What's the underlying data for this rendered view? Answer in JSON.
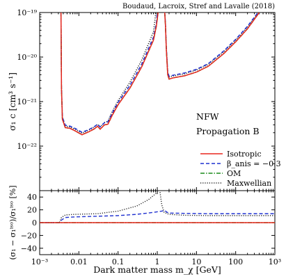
{
  "credit": "Boudaud, Lacroix, Stref and Lavalle (2018)",
  "annotations": [
    "NFW",
    "Propagation B"
  ],
  "colors": {
    "isotropic": "#e8261e",
    "beta": "#1f30d0",
    "om": "#1a8a1a",
    "maxwellian": "#222222"
  },
  "chart_data": [
    {
      "type": "line",
      "panel": "top",
      "xscale": "log",
      "yscale": "log",
      "xlim": [
        0.001,
        1000
      ],
      "ylim": [
        1e-23,
        1e-19
      ],
      "ylabel": "σ₁ c [cm³ s⁻¹]",
      "ytick_labels": [
        "10⁻¹⁹",
        "10⁻²⁰",
        "10⁻²¹",
        "10⁻²²"
      ],
      "ytick_values": [
        1e-19,
        1e-20,
        1e-21,
        1e-22
      ],
      "legend_position": "lower-right",
      "series": [
        {
          "name": "Isotropic",
          "style": "solid",
          "points": [
            [
              0.0035,
              1e-19
            ],
            [
              0.0036,
              2e-21
            ],
            [
              0.0038,
              4e-22
            ],
            [
              0.0045,
              2.6e-22
            ],
            [
              0.006,
              2.5e-22
            ],
            [
              0.008,
              2.2e-22
            ],
            [
              0.012,
              1.8e-22
            ],
            [
              0.018,
              2.1e-22
            ],
            [
              0.025,
              2.45e-22
            ],
            [
              0.03,
              2.8e-22
            ],
            [
              0.035,
              2.4e-22
            ],
            [
              0.045,
              3e-22
            ],
            [
              0.055,
              3.1e-22
            ],
            [
              0.07,
              4.8e-22
            ],
            [
              0.1,
              8.5e-22
            ],
            [
              0.2,
              2e-21
            ],
            [
              0.4,
              6e-21
            ],
            [
              0.8,
              2.4e-20
            ],
            [
              0.95,
              5e-20
            ],
            [
              1.05,
              1e-19
            ]
          ]
        },
        {
          "name": "β_anis = −0.3",
          "style": "dashed",
          "points": [
            [
              0.0035,
              1e-19
            ],
            [
              0.0036,
              2.2e-21
            ],
            [
              0.0038,
              4.5e-22
            ],
            [
              0.0045,
              2.95e-22
            ],
            [
              0.006,
              2.8e-22
            ],
            [
              0.008,
              2.5e-22
            ],
            [
              0.012,
              2.05e-22
            ],
            [
              0.018,
              2.35e-22
            ],
            [
              0.025,
              2.75e-22
            ],
            [
              0.03,
              3.1e-22
            ],
            [
              0.035,
              2.7e-22
            ],
            [
              0.045,
              3.35e-22
            ],
            [
              0.055,
              3.5e-22
            ],
            [
              0.07,
              5.4e-22
            ],
            [
              0.1,
              9.6e-22
            ],
            [
              0.2,
              2.3e-21
            ],
            [
              0.4,
              6.9e-21
            ],
            [
              0.8,
              2.8e-20
            ],
            [
              0.95,
              5.8e-20
            ],
            [
              1.0,
              1e-19
            ]
          ]
        },
        {
          "name": "OM",
          "style": "dashdot",
          "points": [
            [
              0.0035,
              1e-19
            ],
            [
              0.0036,
              2e-21
            ],
            [
              0.0038,
              4e-22
            ],
            [
              0.0045,
              2.6e-22
            ],
            [
              0.006,
              2.5e-22
            ],
            [
              0.008,
              2.2e-22
            ],
            [
              0.012,
              1.8e-22
            ],
            [
              0.018,
              2.1e-22
            ],
            [
              0.025,
              2.45e-22
            ],
            [
              0.03,
              2.8e-22
            ],
            [
              0.035,
              2.4e-22
            ],
            [
              0.045,
              3e-22
            ],
            [
              0.055,
              3.1e-22
            ],
            [
              0.07,
              4.8e-22
            ],
            [
              0.1,
              8.5e-22
            ],
            [
              0.2,
              2e-21
            ],
            [
              0.4,
              6e-21
            ],
            [
              0.8,
              2.4e-20
            ],
            [
              0.95,
              5e-20
            ],
            [
              1.05,
              1e-19
            ]
          ]
        },
        {
          "name": "Maxwellian",
          "style": "dotted",
          "points": [
            [
              0.0035,
              1e-19
            ],
            [
              0.0036,
              2.1e-21
            ],
            [
              0.0038,
              4.3e-22
            ],
            [
              0.0045,
              2.8e-22
            ],
            [
              0.006,
              2.7e-22
            ],
            [
              0.008,
              2.4e-22
            ],
            [
              0.012,
              1.95e-22
            ],
            [
              0.018,
              2.3e-22
            ],
            [
              0.025,
              2.7e-22
            ],
            [
              0.03,
              3.1e-22
            ],
            [
              0.035,
              2.7e-22
            ],
            [
              0.045,
              3.4e-22
            ],
            [
              0.055,
              3.6e-22
            ],
            [
              0.07,
              5.8e-22
            ],
            [
              0.1,
              1.05e-21
            ],
            [
              0.2,
              2.7e-21
            ],
            [
              0.4,
              8.5e-21
            ],
            [
              0.8,
              3.7e-20
            ],
            [
              0.92,
              1e-19
            ]
          ]
        }
      ],
      "right_branch": [
        {
          "name": "Isotropic",
          "points": [
            [
              1.55,
              1e-19
            ],
            [
              1.62,
              5e-20
            ],
            [
              1.7,
              1.5e-20
            ],
            [
              1.85,
              4e-21
            ],
            [
              2.0,
              3.2e-21
            ],
            [
              2.5,
              3.4e-21
            ],
            [
              5,
              3.8e-21
            ],
            [
              10,
              4.6e-21
            ],
            [
              20,
              6.2e-21
            ],
            [
              50,
              1.2e-20
            ],
            [
              100,
              2.2e-20
            ],
            [
              200,
              4.3e-20
            ],
            [
              400,
              1e-19
            ]
          ]
        },
        {
          "name": "β_anis = −0.3",
          "points": [
            [
              1.55,
              1e-19
            ],
            [
              1.62,
              5.6e-20
            ],
            [
              1.7,
              1.7e-20
            ],
            [
              1.85,
              4.6e-21
            ],
            [
              2.0,
              3.7e-21
            ],
            [
              2.5,
              3.9e-21
            ],
            [
              5,
              4.4e-21
            ],
            [
              10,
              5.3e-21
            ],
            [
              20,
              7.1e-21
            ],
            [
              50,
              1.38e-20
            ],
            [
              100,
              2.5e-20
            ],
            [
              200,
              4.9e-20
            ],
            [
              370,
              1e-19
            ]
          ]
        },
        {
          "name": "OM",
          "points": [
            [
              1.55,
              1e-19
            ],
            [
              1.62,
              5e-20
            ],
            [
              1.7,
              1.5e-20
            ],
            [
              1.85,
              4e-21
            ],
            [
              2.0,
              3.2e-21
            ],
            [
              2.5,
              3.4e-21
            ],
            [
              5,
              3.8e-21
            ],
            [
              10,
              4.6e-21
            ],
            [
              20,
              6.2e-21
            ],
            [
              50,
              1.2e-20
            ],
            [
              100,
              2.2e-20
            ],
            [
              200,
              4.3e-20
            ],
            [
              400,
              1e-19
            ]
          ]
        },
        {
          "name": "Maxwellian",
          "points": [
            [
              1.55,
              1e-19
            ],
            [
              1.62,
              5.4e-20
            ],
            [
              1.7,
              1.65e-20
            ],
            [
              1.85,
              4.4e-21
            ],
            [
              2.0,
              3.55e-21
            ],
            [
              2.5,
              3.75e-21
            ],
            [
              5,
              4.2e-21
            ],
            [
              10,
              5.1e-21
            ],
            [
              20,
              6.8e-21
            ],
            [
              50,
              1.32e-20
            ],
            [
              100,
              2.4e-20
            ],
            [
              200,
              4.7e-20
            ],
            [
              380,
              1e-19
            ]
          ]
        }
      ]
    },
    {
      "type": "line",
      "panel": "bottom",
      "xscale": "log",
      "xlim": [
        0.001,
        1000
      ],
      "ylim": [
        -50,
        50
      ],
      "xlabel": "Dark matter mass m_χ [GeV]",
      "ylabel": "(σ₁ − σ₁ⁱˢᵒ)/σ₁ⁱˢᵒ [%]",
      "xtick_labels": [
        "10⁻³",
        "0.01",
        "0.1",
        "1",
        "10",
        "100",
        "10³"
      ],
      "xtick_values": [
        0.001,
        0.01,
        0.1,
        1,
        10,
        100,
        1000
      ],
      "ytick_values": [
        40,
        20,
        0,
        -20,
        -40
      ],
      "series": [
        {
          "name": "Isotropic",
          "points": [
            [
              0.001,
              0
            ],
            [
              1000,
              0
            ]
          ]
        },
        {
          "name": "β_anis = −0.3",
          "points": [
            [
              0.001,
              0
            ],
            [
              0.0032,
              0
            ],
            [
              0.0036,
              4
            ],
            [
              0.0045,
              8
            ],
            [
              0.008,
              9
            ],
            [
              0.03,
              10
            ],
            [
              0.1,
              11
            ],
            [
              0.3,
              13
            ],
            [
              0.8,
              16
            ],
            [
              1.3,
              18
            ],
            [
              1.55,
              19
            ],
            [
              1.8,
              16
            ],
            [
              2.2,
              15
            ],
            [
              5,
              14.5
            ],
            [
              20,
              14
            ],
            [
              100,
              14
            ],
            [
              1000,
              14
            ]
          ]
        },
        {
          "name": "OM",
          "points": [
            [
              0.001,
              0
            ],
            [
              1000,
              0
            ]
          ]
        },
        {
          "name": "Maxwellian",
          "points": [
            [
              0.001,
              0
            ],
            [
              0.0032,
              0
            ],
            [
              0.0036,
              8
            ],
            [
              0.0045,
              12
            ],
            [
              0.008,
              13
            ],
            [
              0.03,
              14
            ],
            [
              0.1,
              18
            ],
            [
              0.3,
              26
            ],
            [
              0.6,
              36
            ],
            [
              0.9,
              45
            ],
            [
              1.15,
              52
            ],
            [
              1.3,
              28
            ],
            [
              1.5,
              16
            ],
            [
              2,
              13
            ],
            [
              5,
              11.5
            ],
            [
              20,
              11
            ],
            [
              100,
              11
            ],
            [
              1000,
              11
            ]
          ]
        }
      ]
    }
  ]
}
